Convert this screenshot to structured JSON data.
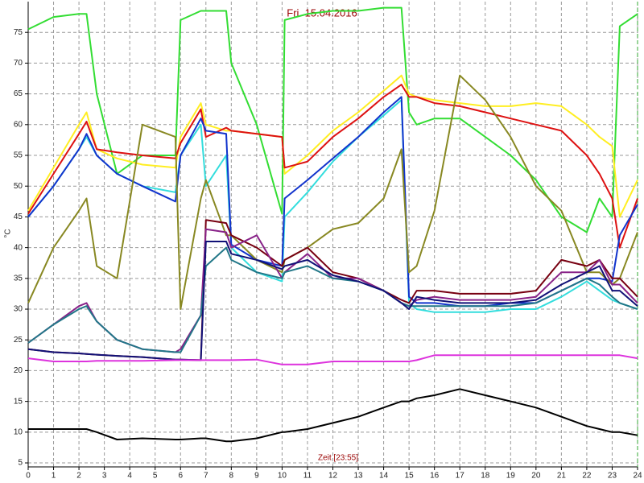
{
  "chart_data": {
    "type": "line",
    "title": "Fri. 15.04.2016",
    "y_label": "°C",
    "x_label": "Zeit [23:55]",
    "xlim": [
      0,
      24
    ],
    "ylim": [
      4.35,
      80
    ],
    "xticks": [
      0,
      1,
      2,
      3,
      4,
      5,
      6,
      7,
      8,
      9,
      10,
      11,
      12,
      13,
      14,
      15,
      16,
      17,
      18,
      19,
      20,
      21,
      22,
      23,
      24
    ],
    "yticks": [
      5,
      10,
      15,
      20,
      25,
      30,
      35,
      40,
      45,
      50,
      55,
      60,
      65,
      70,
      75
    ],
    "grid": true,
    "x": [
      0,
      1,
      2,
      2.3,
      2.7,
      3.5,
      4.5,
      5.8,
      6,
      6.8,
      7,
      7.8,
      8,
      9,
      10,
      10.1,
      11,
      12,
      13,
      14,
      14.7,
      15,
      15.3,
      16,
      17,
      18,
      19,
      20,
      21,
      22,
      22.5,
      23,
      23.3,
      24
    ],
    "series": [
      {
        "color": "#33dd33",
        "values": [
          75.5,
          77.5,
          78,
          78,
          65,
          52,
          55,
          55,
          77,
          78.5,
          78.5,
          78.5,
          70,
          60,
          45.5,
          77,
          78,
          78.5,
          78.5,
          79,
          79,
          62,
          60,
          61,
          61,
          58,
          55,
          51,
          45,
          42.5,
          48,
          45,
          76,
          78
        ]
      },
      {
        "color": "#ffee22",
        "values": [
          46,
          53,
          60,
          62,
          56,
          54.5,
          53.5,
          53,
          58,
          63.5,
          60,
          59,
          59,
          58.5,
          58,
          52,
          55,
          59,
          62,
          65.5,
          68,
          65,
          64.5,
          64,
          63.5,
          63,
          63,
          63.5,
          63,
          60,
          58,
          56.5,
          45,
          51
        ]
      },
      {
        "color": "#dd1111",
        "values": [
          45.5,
          52,
          58.5,
          60.5,
          56,
          55.5,
          55,
          54.5,
          57,
          62.5,
          58,
          59.5,
          59,
          58.5,
          58,
          53,
          54,
          58,
          61,
          64.5,
          66.5,
          64.5,
          64.5,
          63.5,
          63,
          62,
          61,
          60,
          59,
          55,
          52,
          48,
          40,
          48
        ]
      },
      {
        "color": "#33dddd",
        "values": [
          45,
          50,
          56,
          58,
          55,
          52,
          50,
          49,
          55,
          60,
          50,
          55,
          40,
          36,
          34.5,
          45,
          49,
          54,
          58,
          61.5,
          64,
          31,
          30,
          29.5,
          29.5,
          29.5,
          30,
          30,
          32,
          34.5,
          33,
          31.5,
          31,
          30
        ]
      },
      {
        "color": "#1133cc",
        "values": [
          45,
          50,
          56,
          58.5,
          55,
          52,
          50,
          47.5,
          55,
          61,
          59,
          58.5,
          40.5,
          38,
          37,
          48,
          51,
          54.5,
          58,
          62,
          64.5,
          32,
          31,
          31,
          30.5,
          30.5,
          31,
          31,
          33,
          35,
          35,
          34.5,
          42,
          47
        ]
      },
      {
        "color": "#888822",
        "values": [
          31,
          40,
          46,
          48,
          37,
          35,
          60,
          58,
          30,
          48,
          51,
          42,
          42,
          38,
          36,
          38,
          40,
          43,
          44,
          48,
          56,
          36,
          37,
          46,
          68,
          64,
          58,
          50,
          46,
          36,
          36,
          34,
          35,
          42.5
        ]
      },
      {
        "color": "#770011",
        "values": [
          23.5,
          23,
          22.8,
          22.7,
          22.6,
          22.4,
          22.2,
          21.8,
          21.8,
          21.7,
          44.5,
          44,
          42,
          40,
          37,
          38,
          40,
          36,
          35,
          33,
          31.5,
          31,
          33,
          33,
          32.5,
          32.5,
          32.5,
          33,
          38,
          37,
          38,
          35,
          35,
          32
        ]
      },
      {
        "color": "#882288",
        "values": [
          24.5,
          27.5,
          30.5,
          31,
          28,
          25,
          23.5,
          23,
          23.5,
          29,
          43,
          42.5,
          40,
          42,
          35,
          36,
          39,
          35,
          35,
          33,
          31,
          30.5,
          31.5,
          32,
          31.5,
          31.5,
          31.5,
          32,
          36,
          36,
          38,
          34,
          34,
          31
        ]
      },
      {
        "color": "#227788",
        "values": [
          24.5,
          27.5,
          30,
          30.5,
          28,
          25,
          23.5,
          23,
          23,
          29,
          37,
          40,
          38,
          36,
          35,
          36,
          37,
          35,
          34.5,
          33,
          31,
          30.5,
          30.5,
          30.5,
          30.5,
          30.5,
          30.5,
          31,
          33,
          35,
          34,
          32,
          31,
          30
        ]
      },
      {
        "color": "#111177",
        "values": [
          23.5,
          23,
          22.8,
          22.7,
          22.6,
          22.4,
          22.2,
          21.8,
          21.8,
          21.7,
          41,
          41,
          39,
          38,
          36.5,
          37,
          38,
          35.5,
          34.5,
          33,
          31,
          30,
          32,
          31.5,
          31,
          31,
          31,
          31.5,
          34,
          36,
          37,
          33,
          33,
          30.5
        ]
      },
      {
        "color": "#dd33dd",
        "values": [
          22,
          21.5,
          21.5,
          21.5,
          21.6,
          21.6,
          21.6,
          21.7,
          21.7,
          21.7,
          21.7,
          21.7,
          21.7,
          21.8,
          21,
          21,
          21,
          21.5,
          21.5,
          21.5,
          21.5,
          21.5,
          21.7,
          22.5,
          22.5,
          22.5,
          22.5,
          22.5,
          22.5,
          22.5,
          22.5,
          22.5,
          22.5,
          22
        ]
      },
      {
        "color": "#000000",
        "values": [
          10.5,
          10.5,
          10.5,
          10.5,
          10,
          8.8,
          9,
          8.8,
          8.8,
          9,
          9,
          8.5,
          8.5,
          9,
          10,
          10,
          10.5,
          11.5,
          12.5,
          14,
          15,
          15,
          15.5,
          16,
          17,
          16,
          15,
          14,
          12.5,
          11,
          10.5,
          10,
          10,
          9.5
        ]
      }
    ]
  }
}
